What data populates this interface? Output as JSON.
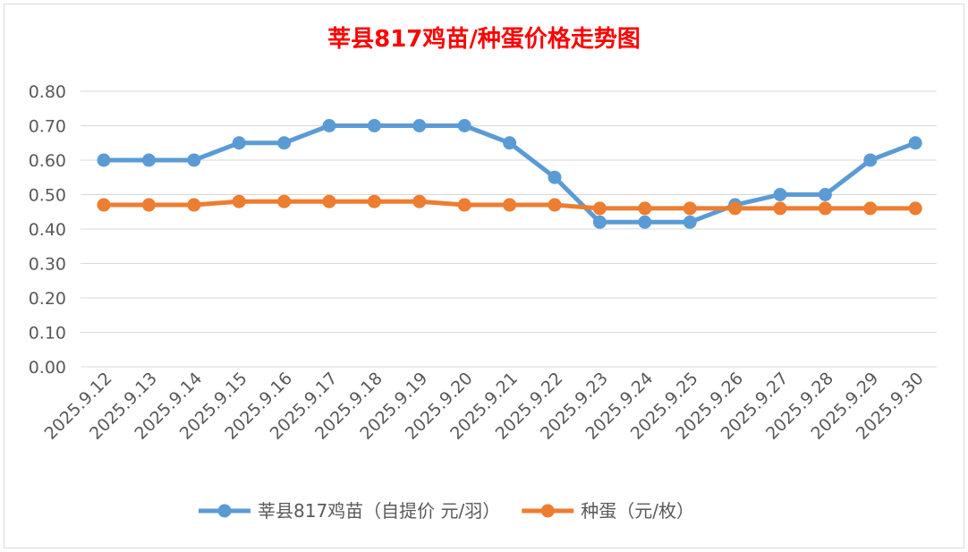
{
  "chart_data": {
    "type": "line",
    "title": "莘县817鸡苗/种蛋价格走势图",
    "xlabel": "",
    "ylabel": "",
    "ylim": [
      0,
      0.8
    ],
    "ytick_step": 0.1,
    "ytick_labels": [
      "0.00",
      "0.10",
      "0.20",
      "0.30",
      "0.40",
      "0.50",
      "0.60",
      "0.70",
      "0.80"
    ],
    "grid": true,
    "legend_position": "bottom",
    "categories": [
      "2025.9.12",
      "2025.9.13",
      "2025.9.14",
      "2025.9.15",
      "2025.9.16",
      "2025.9.17",
      "2025.9.18",
      "2025.9.19",
      "2025.9.20",
      "2025.9.21",
      "2025.9.22",
      "2025.9.23",
      "2025.9.24",
      "2025.9.25",
      "2025.9.26",
      "2025.9.27",
      "2025.9.28",
      "2025.9.29",
      "2025.9.30"
    ],
    "series": [
      {
        "name": "莘县817鸡苗（自提价 元/羽）",
        "color": "#5b9bd5",
        "values": [
          0.6,
          0.6,
          0.6,
          0.65,
          0.65,
          0.7,
          0.7,
          0.7,
          0.7,
          0.65,
          0.55,
          0.42,
          0.42,
          0.42,
          0.47,
          0.5,
          0.5,
          0.6,
          0.65
        ]
      },
      {
        "name": "种蛋（元/枚）",
        "color": "#ed7d31",
        "values": [
          0.47,
          0.47,
          0.47,
          0.48,
          0.48,
          0.48,
          0.48,
          0.48,
          0.47,
          0.47,
          0.47,
          0.46,
          0.46,
          0.46,
          0.46,
          0.46,
          0.46,
          0.46,
          0.46
        ]
      }
    ]
  }
}
